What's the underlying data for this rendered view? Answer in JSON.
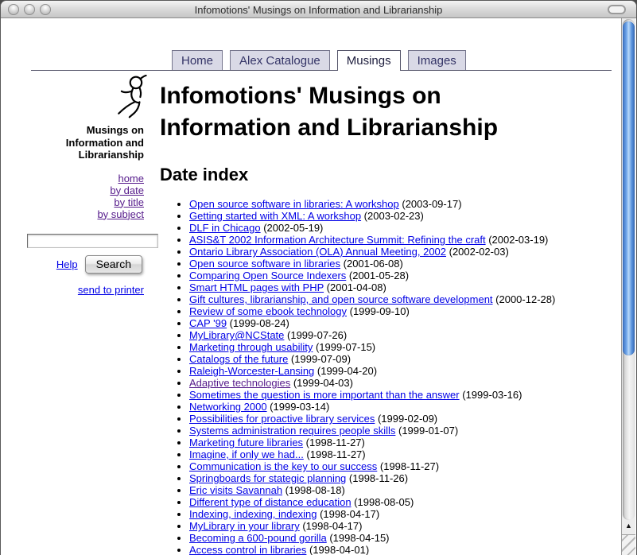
{
  "window": {
    "title": "Infomotions' Musings on Information and Librarianship"
  },
  "tabs": [
    {
      "label": "Home",
      "active": false
    },
    {
      "label": "Alex Catalogue",
      "active": false
    },
    {
      "label": "Musings",
      "active": true
    },
    {
      "label": "Images",
      "active": false
    }
  ],
  "sidebar": {
    "site_title": "Musings on Information and Librarianship",
    "nav_links": [
      "home",
      "by date",
      "by title",
      "by subject"
    ],
    "search_value": "",
    "help_label": "Help",
    "search_button_label": "Search",
    "print_link_label": "send to printer"
  },
  "main": {
    "heading": "Infomotions' Musings on Information and Librarianship",
    "section_title": "Date index",
    "entries": [
      {
        "title": "Open source software in libraries: A workshop",
        "date": "2003-09-17",
        "visited": false
      },
      {
        "title": "Getting started with XML: A workshop",
        "date": "2003-02-23",
        "visited": false
      },
      {
        "title": "DLF in Chicago",
        "date": "2002-05-19",
        "visited": false
      },
      {
        "title": "ASIS&T 2002 Information Architecture Summit: Refining the craft",
        "date": "2002-03-19",
        "visited": false
      },
      {
        "title": "Ontario Library Association (OLA) Annual Meeting, 2002",
        "date": "2002-02-03",
        "visited": false
      },
      {
        "title": "Open source software in libraries",
        "date": "2001-06-08",
        "visited": false
      },
      {
        "title": "Comparing Open Source Indexers",
        "date": "2001-05-28",
        "visited": false
      },
      {
        "title": "Smart HTML pages with PHP",
        "date": "2001-04-08",
        "visited": false
      },
      {
        "title": "Gift cultures, librarianship, and open source software development",
        "date": "2000-12-28",
        "visited": false
      },
      {
        "title": "Review of some ebook technology",
        "date": "1999-09-10",
        "visited": false
      },
      {
        "title": "CAP '99",
        "date": "1999-08-24",
        "visited": false
      },
      {
        "title": "MyLibrary@NCState",
        "date": "1999-07-26",
        "visited": false
      },
      {
        "title": "Marketing through usability",
        "date": "1999-07-15",
        "visited": false
      },
      {
        "title": "Catalogs of the future",
        "date": "1999-07-09",
        "visited": false
      },
      {
        "title": "Raleigh-Worcester-Lansing",
        "date": "1999-04-20",
        "visited": false
      },
      {
        "title": "Adaptive technologies",
        "date": "1999-04-03",
        "visited": true
      },
      {
        "title": "Sometimes the question is more important than the answer",
        "date": "1999-03-16",
        "visited": false
      },
      {
        "title": "Networking 2000",
        "date": "1999-03-14",
        "visited": false
      },
      {
        "title": "Possibilities for proactive library services",
        "date": "1999-02-09",
        "visited": false
      },
      {
        "title": "Systems administration requires people skills",
        "date": "1999-01-07",
        "visited": false
      },
      {
        "title": "Marketing future libraries",
        "date": "1998-11-27",
        "visited": false
      },
      {
        "title": "Imagine, if only we had...",
        "date": "1998-11-27",
        "visited": false
      },
      {
        "title": "Communication is the key to our success",
        "date": "1998-11-27",
        "visited": false
      },
      {
        "title": "Springboards for stategic planning",
        "date": "1998-11-26",
        "visited": false
      },
      {
        "title": "Eric visits Savannah",
        "date": "1998-08-18",
        "visited": false
      },
      {
        "title": "Different type of distance education",
        "date": "1998-08-05",
        "visited": false
      },
      {
        "title": "Indexing, indexing, indexing",
        "date": "1998-04-17",
        "visited": false
      },
      {
        "title": "MyLibrary in your library",
        "date": "1998-04-17",
        "visited": false
      },
      {
        "title": "Becoming a 600-pound gorilla",
        "date": "1998-04-15",
        "visited": false
      },
      {
        "title": "Access control in libraries",
        "date": "1998-04-01",
        "visited": false
      }
    ]
  },
  "colors": {
    "link": "#0000e6",
    "visited_link": "#551a8b",
    "tab_background": "#d9d9e6",
    "tab_text": "#333366",
    "scroll_thumb": "#5b94dd"
  }
}
